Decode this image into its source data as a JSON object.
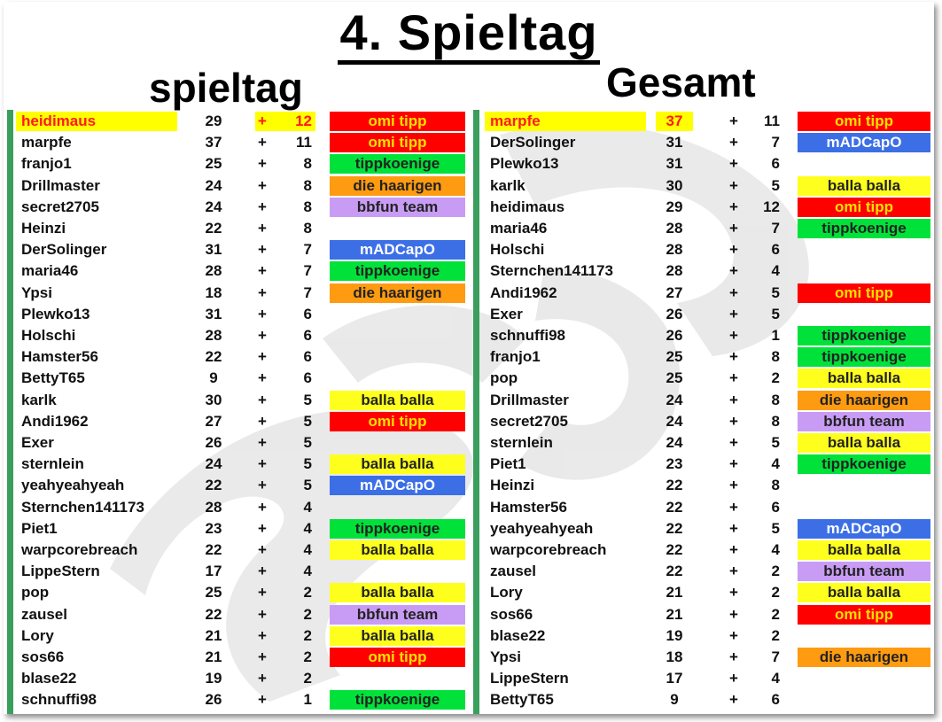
{
  "title": "4. Spieltag",
  "left_heading": "spieltag",
  "right_heading": "Gesamt",
  "colors": {
    "omi tipp": "#ff0000",
    "mADCapO": "#3c6fe6",
    "tippkoenige": "#00e23a",
    "die haarigen": "#ff9b11",
    "bbfun team": "#c89cf4",
    "balla balla": "#ffff1e",
    "highlight": "#ffff00",
    "highlight_text": "#ff1a1a"
  },
  "spieltag": [
    {
      "name": "heidimaus",
      "total": "29",
      "plus": "+",
      "pts": "12",
      "team": "omi tipp",
      "highlight": true
    },
    {
      "name": "marpfe",
      "total": "37",
      "plus": "+",
      "pts": "11",
      "team": "omi tipp"
    },
    {
      "name": "franjo1",
      "total": "25",
      "plus": "+",
      "pts": "8",
      "team": "tippkoenige"
    },
    {
      "name": "Drillmaster",
      "total": "24",
      "plus": "+",
      "pts": "8",
      "team": "die haarigen"
    },
    {
      "name": "secret2705",
      "total": "24",
      "plus": "+",
      "pts": "8",
      "team": "bbfun team"
    },
    {
      "name": "Heinzi",
      "total": "22",
      "plus": "+",
      "pts": "8",
      "team": ""
    },
    {
      "name": "DerSolinger",
      "total": "31",
      "plus": "+",
      "pts": "7",
      "team": "mADCapO"
    },
    {
      "name": "maria46",
      "total": "28",
      "plus": "+",
      "pts": "7",
      "team": "tippkoenige"
    },
    {
      "name": "Ypsi",
      "total": "18",
      "plus": "+",
      "pts": "7",
      "team": "die haarigen"
    },
    {
      "name": "Plewko13",
      "total": "31",
      "plus": "+",
      "pts": "6",
      "team": ""
    },
    {
      "name": "Holschi",
      "total": "28",
      "plus": "+",
      "pts": "6",
      "team": ""
    },
    {
      "name": "Hamster56",
      "total": "22",
      "plus": "+",
      "pts": "6",
      "team": ""
    },
    {
      "name": "BettyT65",
      "total": "9",
      "plus": "+",
      "pts": "6",
      "team": ""
    },
    {
      "name": "karlk",
      "total": "30",
      "plus": "+",
      "pts": "5",
      "team": "balla balla"
    },
    {
      "name": "Andi1962",
      "total": "27",
      "plus": "+",
      "pts": "5",
      "team": "omi tipp"
    },
    {
      "name": "Exer",
      "total": "26",
      "plus": "+",
      "pts": "5",
      "team": ""
    },
    {
      "name": "sternlein",
      "total": "24",
      "plus": "+",
      "pts": "5",
      "team": "balla balla"
    },
    {
      "name": "yeahyeahyeah",
      "total": "22",
      "plus": "+",
      "pts": "5",
      "team": "mADCapO"
    },
    {
      "name": "Sternchen141173",
      "total": "28",
      "plus": "+",
      "pts": "4",
      "team": ""
    },
    {
      "name": "Piet1",
      "total": "23",
      "plus": "+",
      "pts": "4",
      "team": "tippkoenige"
    },
    {
      "name": "warpcorebreach",
      "total": "22",
      "plus": "+",
      "pts": "4",
      "team": "balla balla"
    },
    {
      "name": "LippeStern",
      "total": "17",
      "plus": "+",
      "pts": "4",
      "team": ""
    },
    {
      "name": "pop",
      "total": "25",
      "plus": "+",
      "pts": "2",
      "team": "balla balla"
    },
    {
      "name": "zausel",
      "total": "22",
      "plus": "+",
      "pts": "2",
      "team": "bbfun team"
    },
    {
      "name": "Lory",
      "total": "21",
      "plus": "+",
      "pts": "2",
      "team": "balla balla"
    },
    {
      "name": "sos66",
      "total": "21",
      "plus": "+",
      "pts": "2",
      "team": "omi tipp"
    },
    {
      "name": "blase22",
      "total": "19",
      "plus": "+",
      "pts": "2",
      "team": ""
    },
    {
      "name": "schnuffi98",
      "total": "26",
      "plus": "+",
      "pts": "1",
      "team": "tippkoenige"
    }
  ],
  "gesamt": [
    {
      "name": "marpfe",
      "total": "37",
      "plus": "+",
      "pts": "11",
      "team": "omi tipp",
      "highlight": true
    },
    {
      "name": "DerSolinger",
      "total": "31",
      "plus": "+",
      "pts": "7",
      "team": "mADCapO"
    },
    {
      "name": "Plewko13",
      "total": "31",
      "plus": "+",
      "pts": "6",
      "team": ""
    },
    {
      "name": "karlk",
      "total": "30",
      "plus": "+",
      "pts": "5",
      "team": "balla balla"
    },
    {
      "name": "heidimaus",
      "total": "29",
      "plus": "+",
      "pts": "12",
      "team": "omi tipp"
    },
    {
      "name": "maria46",
      "total": "28",
      "plus": "+",
      "pts": "7",
      "team": "tippkoenige"
    },
    {
      "name": "Holschi",
      "total": "28",
      "plus": "+",
      "pts": "6",
      "team": ""
    },
    {
      "name": "Sternchen141173",
      "total": "28",
      "plus": "+",
      "pts": "4",
      "team": ""
    },
    {
      "name": "Andi1962",
      "total": "27",
      "plus": "+",
      "pts": "5",
      "team": "omi tipp"
    },
    {
      "name": "Exer",
      "total": "26",
      "plus": "+",
      "pts": "5",
      "team": ""
    },
    {
      "name": "schnuffi98",
      "total": "26",
      "plus": "+",
      "pts": "1",
      "team": "tippkoenige"
    },
    {
      "name": "franjo1",
      "total": "25",
      "plus": "+",
      "pts": "8",
      "team": "tippkoenige"
    },
    {
      "name": "pop",
      "total": "25",
      "plus": "+",
      "pts": "2",
      "team": "balla balla"
    },
    {
      "name": "Drillmaster",
      "total": "24",
      "plus": "+",
      "pts": "8",
      "team": "die haarigen"
    },
    {
      "name": "secret2705",
      "total": "24",
      "plus": "+",
      "pts": "8",
      "team": "bbfun team"
    },
    {
      "name": "sternlein",
      "total": "24",
      "plus": "+",
      "pts": "5",
      "team": "balla balla"
    },
    {
      "name": "Piet1",
      "total": "23",
      "plus": "+",
      "pts": "4",
      "team": "tippkoenige"
    },
    {
      "name": "Heinzi",
      "total": "22",
      "plus": "+",
      "pts": "8",
      "team": ""
    },
    {
      "name": "Hamster56",
      "total": "22",
      "plus": "+",
      "pts": "6",
      "team": ""
    },
    {
      "name": "yeahyeahyeah",
      "total": "22",
      "plus": "+",
      "pts": "5",
      "team": "mADCapO"
    },
    {
      "name": "warpcorebreach",
      "total": "22",
      "plus": "+",
      "pts": "4",
      "team": "balla balla"
    },
    {
      "name": "zausel",
      "total": "22",
      "plus": "+",
      "pts": "2",
      "team": "bbfun team"
    },
    {
      "name": "Lory",
      "total": "21",
      "plus": "+",
      "pts": "2",
      "team": "balla balla"
    },
    {
      "name": "sos66",
      "total": "21",
      "plus": "+",
      "pts": "2",
      "team": "omi tipp"
    },
    {
      "name": "blase22",
      "total": "19",
      "plus": "+",
      "pts": "2",
      "team": ""
    },
    {
      "name": "Ypsi",
      "total": "18",
      "plus": "+",
      "pts": "7",
      "team": "die haarigen"
    },
    {
      "name": "LippeStern",
      "total": "17",
      "plus": "+",
      "pts": "4",
      "team": ""
    },
    {
      "name": "BettyT65",
      "total": "9",
      "plus": "+",
      "pts": "6",
      "team": ""
    }
  ]
}
